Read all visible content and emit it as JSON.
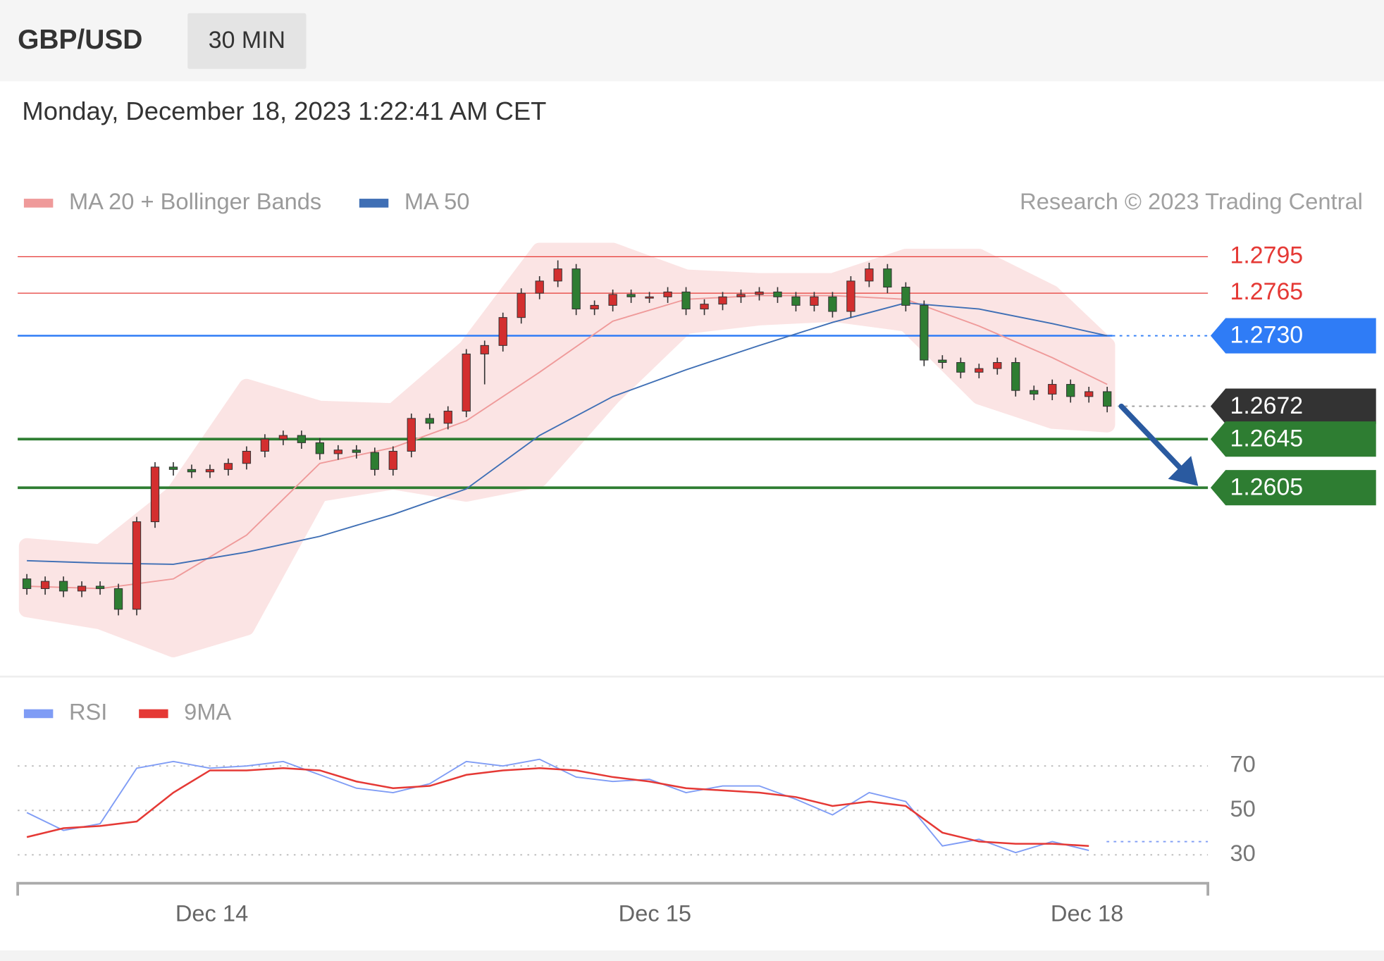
{
  "header": {
    "symbol": "GBP/USD",
    "interval": "30 MIN",
    "timestamp": "Monday, December 18, 2023 1:22:41 AM CET"
  },
  "chart_data": [
    {
      "type": "candlestick",
      "copyright": "Research © 2023 Trading Central",
      "xlim": [
        -0.5,
        64.5
      ],
      "ylim": [
        1.2454,
        1.281
      ],
      "up_color": "#d32f2f",
      "down_color": "#2e7d32",
      "candles": {
        "open": [
          1.253,
          1.2522,
          1.2528,
          1.252,
          1.2524,
          1.2522,
          1.2505,
          1.2577,
          1.2622,
          1.262,
          1.2618,
          1.262,
          1.2625,
          1.2635,
          1.2645,
          1.2648,
          1.2642,
          1.2633,
          1.2636,
          1.2634,
          1.262,
          1.2635,
          1.2662,
          1.2658,
          1.2668,
          1.2715,
          1.2722,
          1.2745,
          1.2765,
          1.2775,
          1.2785,
          1.2752,
          1.2755,
          1.2764,
          1.2762,
          1.2762,
          1.2766,
          1.2752,
          1.2756,
          1.2762,
          1.2764,
          1.2766,
          1.2762,
          1.2755,
          1.2762,
          1.275,
          1.2775,
          1.2785,
          1.277,
          1.2755,
          1.271,
          1.2708,
          1.27,
          1.2703,
          1.2708,
          1.2685,
          1.2682,
          1.269,
          1.268,
          1.2684
        ],
        "high": [
          1.2534,
          1.2532,
          1.2532,
          1.2528,
          1.2528,
          1.2526,
          1.2581,
          1.2626,
          1.2626,
          1.2624,
          1.2624,
          1.2629,
          1.2639,
          1.2649,
          1.2652,
          1.2652,
          1.2646,
          1.264,
          1.264,
          1.2638,
          1.2639,
          1.2666,
          1.2666,
          1.2672,
          1.2719,
          1.2726,
          1.2749,
          1.2769,
          1.2779,
          1.2792,
          1.2789,
          1.2759,
          1.2768,
          1.2768,
          1.2766,
          1.277,
          1.277,
          1.276,
          1.2766,
          1.2768,
          1.277,
          1.277,
          1.2766,
          1.2766,
          1.2766,
          1.2779,
          1.279,
          1.2789,
          1.2774,
          1.2759,
          1.2714,
          1.2712,
          1.2707,
          1.2712,
          1.2712,
          1.2689,
          1.2694,
          1.2694,
          1.2688,
          1.2688
        ],
        "low": [
          1.2517,
          1.2517,
          1.2515,
          1.2515,
          1.2517,
          1.25,
          1.25,
          1.2572,
          1.2615,
          1.2613,
          1.2613,
          1.2615,
          1.262,
          1.263,
          1.264,
          1.2637,
          1.2628,
          1.2628,
          1.2629,
          1.2615,
          1.2615,
          1.263,
          1.2653,
          1.2653,
          1.2663,
          1.269,
          1.2717,
          1.274,
          1.276,
          1.277,
          1.2747,
          1.2747,
          1.275,
          1.2757,
          1.2757,
          1.2757,
          1.2747,
          1.2747,
          1.2751,
          1.2757,
          1.2759,
          1.2757,
          1.275,
          1.275,
          1.2745,
          1.2745,
          1.277,
          1.2765,
          1.275,
          1.2705,
          1.2703,
          1.2695,
          1.2695,
          1.2698,
          1.268,
          1.2677,
          1.2677,
          1.2675,
          1.2675,
          1.2667
        ],
        "close": [
          1.2522,
          1.2528,
          1.252,
          1.2524,
          1.2522,
          1.2505,
          1.2577,
          1.2622,
          1.262,
          1.2618,
          1.262,
          1.2625,
          1.2635,
          1.2645,
          1.2648,
          1.2642,
          1.2633,
          1.2636,
          1.2634,
          1.262,
          1.2635,
          1.2662,
          1.2658,
          1.2668,
          1.2715,
          1.2722,
          1.2745,
          1.2765,
          1.2775,
          1.2785,
          1.2752,
          1.2755,
          1.2764,
          1.2762,
          1.2762,
          1.2766,
          1.2752,
          1.2756,
          1.2762,
          1.2764,
          1.2766,
          1.2762,
          1.2755,
          1.2762,
          1.275,
          1.2775,
          1.2785,
          1.277,
          1.2755,
          1.271,
          1.2708,
          1.27,
          1.2703,
          1.2708,
          1.2685,
          1.2682,
          1.269,
          1.268,
          1.2684,
          1.2672
        ]
      },
      "series": [
        {
          "name": "MA 20 + Bollinger Bands",
          "color": "#ef9a9a",
          "band_color": "#fbe0e0",
          "x": [
            0,
            4,
            8,
            12,
            16,
            20,
            24,
            28,
            32,
            36,
            40,
            44,
            48,
            52,
            56,
            59
          ],
          "values": [
            1.2524,
            1.2522,
            1.253,
            1.2566,
            1.2625,
            1.2638,
            1.266,
            1.27,
            1.2742,
            1.276,
            1.2763,
            1.2763,
            1.276,
            1.2738,
            1.2712,
            1.269
          ],
          "upper": [
            1.2557,
            1.2552,
            1.26,
            1.2688,
            1.267,
            1.2668,
            1.272,
            1.28,
            1.28,
            1.2778,
            1.2775,
            1.2775,
            1.2795,
            1.2795,
            1.2765,
            1.2722
          ],
          "lower": [
            1.2505,
            1.2495,
            1.2472,
            1.249,
            1.26,
            1.261,
            1.26,
            1.2612,
            1.268,
            1.2738,
            1.2745,
            1.2748,
            1.274,
            1.268,
            1.266,
            1.2657
          ]
        },
        {
          "name": "MA 50",
          "color": "#3f6fb5",
          "x": [
            0,
            4,
            8,
            12,
            16,
            20,
            24,
            28,
            32,
            36,
            40,
            44,
            48,
            52,
            56,
            59
          ],
          "values": [
            1.2545,
            1.2543,
            1.2542,
            1.2552,
            1.2565,
            1.2583,
            1.2604,
            1.2648,
            1.268,
            1.2702,
            1.2722,
            1.2741,
            1.2757,
            1.2752,
            1.274,
            1.273
          ]
        }
      ],
      "levels": [
        {
          "value": 1.2795,
          "color": "#e53935",
          "line": "solid",
          "width": 1,
          "tag": false
        },
        {
          "value": 1.2765,
          "color": "#e53935",
          "line": "solid",
          "width": 1,
          "tag": false
        },
        {
          "value": 1.273,
          "label": "1.2730",
          "color": "#2f7cf6",
          "line": "solid-dotted",
          "width": 2,
          "tag": true
        },
        {
          "value": 1.2672,
          "color": "#333333",
          "line": "dotted",
          "width": 1.5,
          "tag": true
        },
        {
          "value": 1.2645,
          "color": "#2e7d32",
          "line": "solid",
          "width": 3,
          "tag": true
        },
        {
          "value": 1.2605,
          "color": "#2e7d32",
          "line": "solid",
          "width": 3,
          "tag": true
        }
      ]
    },
    {
      "type": "line",
      "xlim": [
        -0.5,
        64.5
      ],
      "ylim": [
        20,
        80
      ],
      "yticks": [
        30,
        50,
        70
      ],
      "grid": true,
      "xticks": [
        {
          "value": 10.1,
          "label": "Dec 14"
        },
        {
          "value": 34.3,
          "label": "Dec 15"
        },
        {
          "value": 57.9,
          "label": "Dec 18"
        }
      ],
      "series": [
        {
          "name": "RSI",
          "color": "#7f9cf5",
          "x": [
            0,
            2,
            4,
            6,
            8,
            10,
            12,
            14,
            16,
            18,
            20,
            22,
            24,
            26,
            28,
            30,
            32,
            34,
            36,
            38,
            40,
            42,
            44,
            46,
            48,
            50,
            52,
            54,
            56,
            58
          ],
          "values": [
            49,
            41,
            44,
            69,
            72,
            69,
            70,
            72,
            66,
            60,
            58,
            62,
            72,
            70,
            73,
            65,
            63,
            64,
            58,
            61,
            61,
            55,
            48,
            58,
            54,
            34,
            37,
            31,
            36,
            32
          ]
        },
        {
          "name": "9MA",
          "color": "#e53935",
          "x": [
            0,
            2,
            4,
            6,
            8,
            10,
            12,
            14,
            16,
            18,
            20,
            22,
            24,
            26,
            28,
            30,
            32,
            34,
            36,
            38,
            40,
            42,
            44,
            46,
            48,
            50,
            52,
            54,
            56,
            58
          ],
          "values": [
            38,
            42,
            43,
            45,
            58,
            68,
            68,
            69,
            68,
            63,
            60,
            61,
            66,
            68,
            69,
            68,
            65,
            63,
            60,
            59,
            58,
            56,
            52,
            54,
            52,
            40,
            36,
            35,
            35,
            34
          ]
        }
      ]
    }
  ]
}
